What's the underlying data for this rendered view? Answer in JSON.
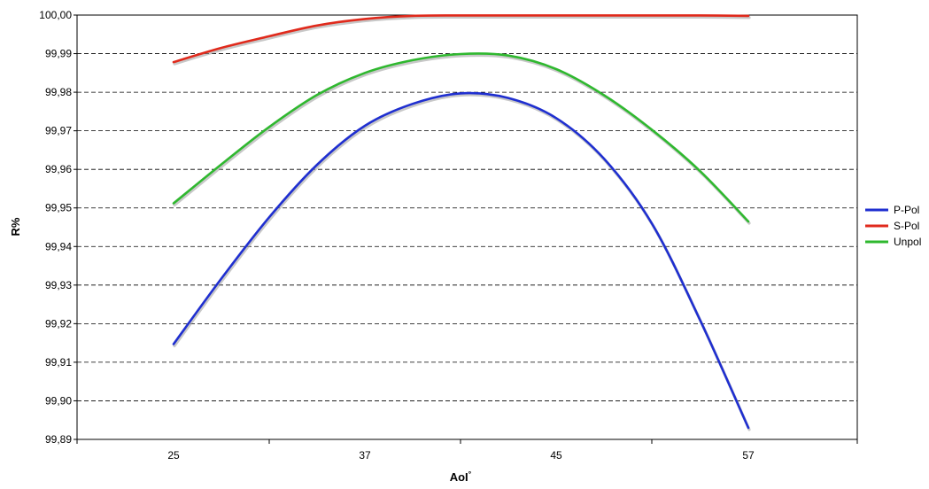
{
  "chart_data": {
    "type": "line",
    "title": "",
    "xlabel": "AoI",
    "xlabel_sup": "°",
    "ylabel": "R%",
    "categories": [
      "25",
      "37",
      "45",
      "57"
    ],
    "x_tick_labels": [
      "25",
      "37",
      "45",
      "57"
    ],
    "x_category_index": [
      0,
      1,
      2,
      3
    ],
    "y_tick_labels": [
      "99,89",
      "99,90",
      "99,91",
      "99,92",
      "99,93",
      "99,94",
      "99,95",
      "99,96",
      "99,97",
      "99,98",
      "99,99",
      "100,00"
    ],
    "ylim": [
      99.89,
      100.0
    ],
    "grid": "horizontal dashed",
    "legend_position": "right",
    "series": [
      {
        "name": "P-Pol",
        "color": "#1f2fd0",
        "x": [
          0,
          0.25,
          0.5,
          0.75,
          1.0,
          1.25,
          1.5,
          1.75,
          2.0,
          2.25,
          2.5,
          2.75,
          3.0
        ],
        "values": [
          99.9147,
          99.9317,
          99.9476,
          99.9612,
          99.9713,
          99.977,
          99.9797,
          99.9785,
          99.9733,
          99.9627,
          99.9458,
          99.9208,
          99.893
        ]
      },
      {
        "name": "S-Pol",
        "color": "#e02a1c",
        "x": [
          0,
          0.25,
          0.5,
          0.75,
          1.0,
          1.25,
          1.5,
          1.75,
          2.0,
          2.25,
          2.5,
          2.75,
          3.0
        ],
        "values": [
          99.9878,
          99.9915,
          99.9945,
          99.9973,
          99.999,
          99.9998,
          99.9999,
          99.9999,
          99.9999,
          99.9999,
          99.9999,
          99.9999,
          99.9998
        ]
      },
      {
        "name": "Unpol",
        "color": "#2fb82f",
        "x": [
          0,
          0.25,
          0.5,
          0.75,
          1.0,
          1.25,
          1.5,
          1.75,
          2.0,
          2.25,
          2.5,
          2.75,
          3.0
        ],
        "values": [
          99.9512,
          99.9613,
          99.971,
          99.9793,
          99.985,
          99.9883,
          99.9899,
          99.9895,
          99.986,
          99.9792,
          99.9702,
          99.9595,
          99.9465
        ]
      }
    ]
  }
}
